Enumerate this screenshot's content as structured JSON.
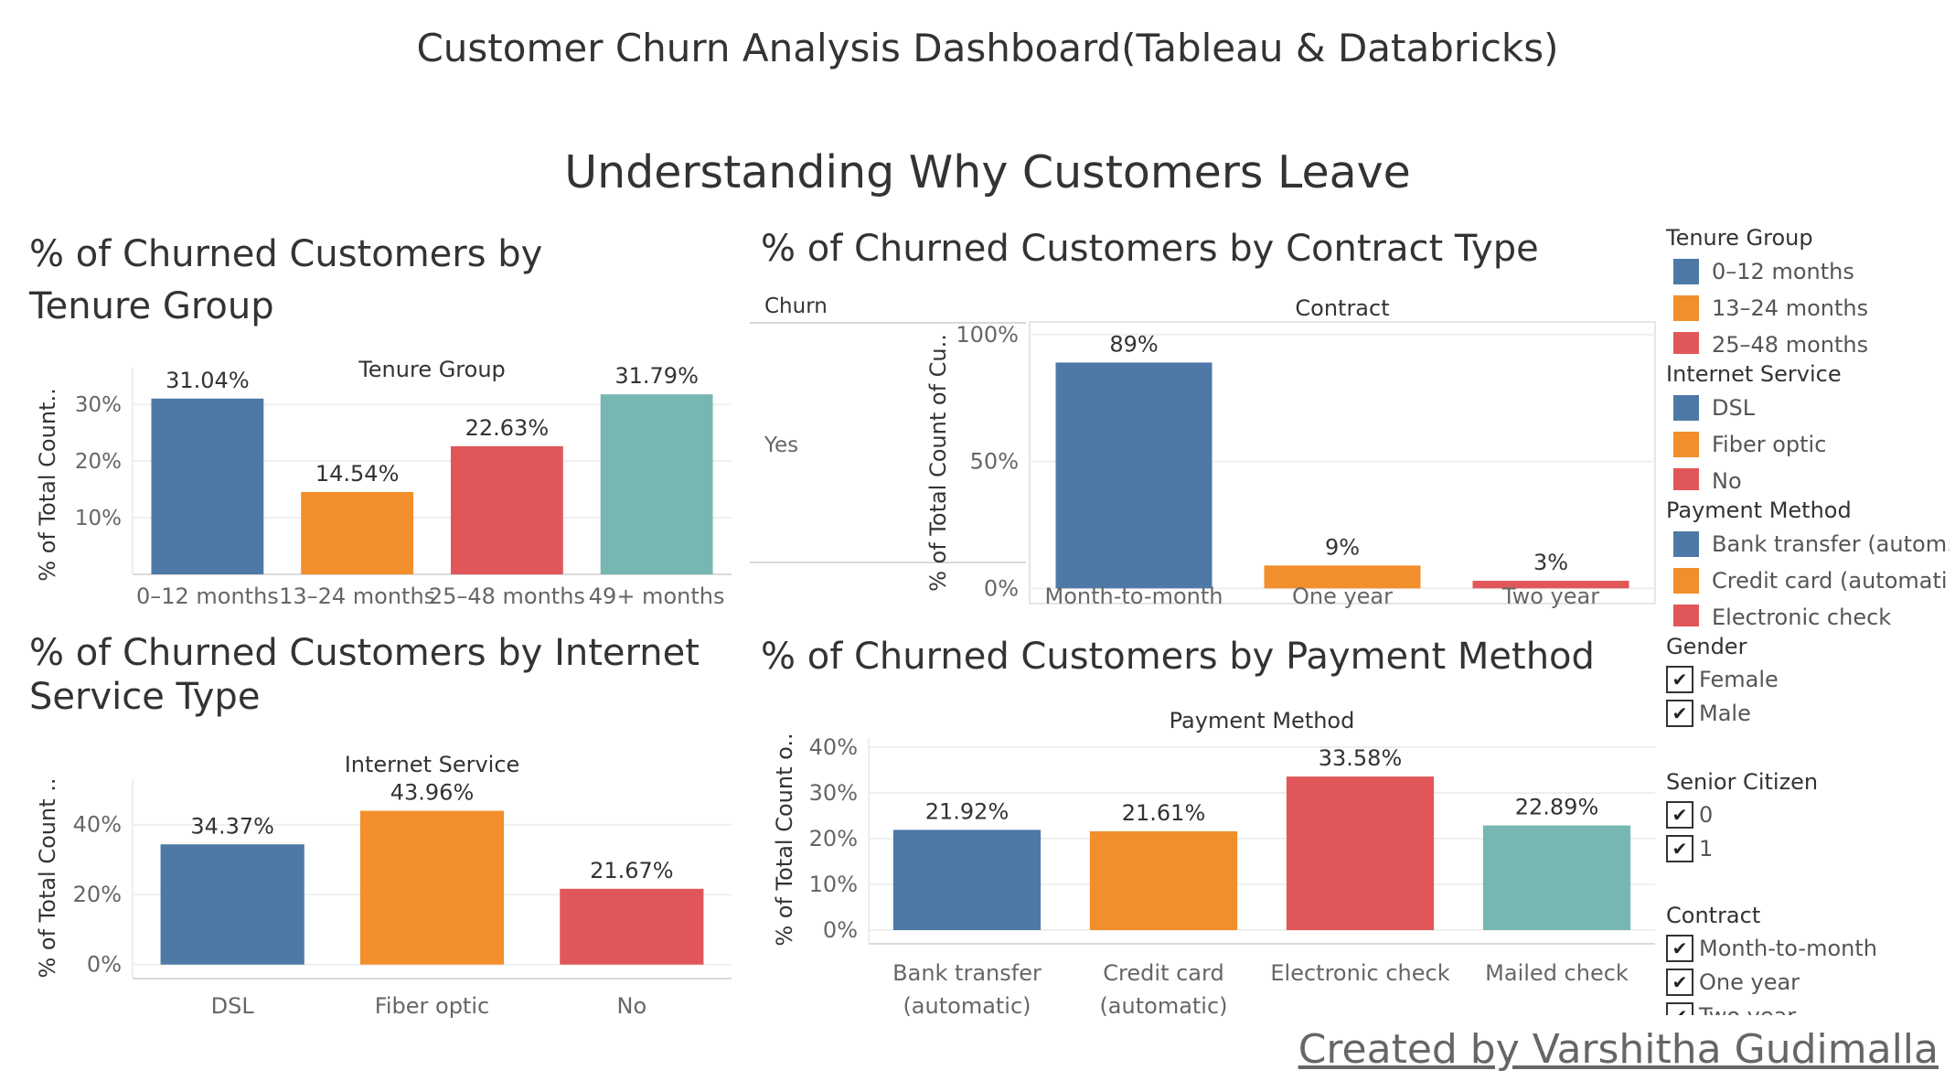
{
  "header": {
    "title": "Customer Churn Analysis Dashboard(Tableau & Databricks)",
    "subtitle": "Understanding Why Customers Leave"
  },
  "sheets": {
    "tenure": {
      "title": "% of Churned Customers by Tenure Group"
    },
    "contract": {
      "title": "% of Churned Customers by Contract Type",
      "row_header": "Churn",
      "row_value": "Yes"
    },
    "internet": {
      "title": "% of Churned Customers by Internet Service Type"
    },
    "payment": {
      "title": "% of Churned Customers by Payment Method"
    }
  },
  "chart_data": [
    {
      "id": "tenure",
      "type": "bar",
      "title": "% of Churned Customers by Tenure Group",
      "xlabel": "Tenure Group",
      "ylabel": "% of Total Count..",
      "categories": [
        "0–12 months",
        "13–24 months",
        "25–48 months",
        "49+ months"
      ],
      "values": [
        31.04,
        14.54,
        22.63,
        31.79
      ],
      "data_labels": [
        "31.04%",
        "14.54%",
        "22.63%",
        "31.79%"
      ],
      "colors": [
        "#4e79a7",
        "#f28e2b",
        "#e15759",
        "#76b7b2"
      ],
      "yticks": [
        10,
        20,
        30
      ],
      "ytick_labels": [
        "10%",
        "20%",
        "30%"
      ],
      "ylim": [
        0,
        36.5
      ],
      "grid": true
    },
    {
      "id": "contract",
      "type": "bar",
      "title": "% of Churned Customers by Contract Type",
      "xlabel": "Contract",
      "ylabel": "% of Total Count of Cu..",
      "categories": [
        "Month-to-month",
        "One year",
        "Two year"
      ],
      "values": [
        89,
        9,
        3
      ],
      "data_labels": [
        "89%",
        "9%",
        "3%"
      ],
      "colors": [
        "#4e79a7",
        "#f28e2b",
        "#e15759"
      ],
      "yticks": [
        0,
        50,
        100
      ],
      "ytick_labels": [
        "0%",
        "50%",
        "100%"
      ],
      "ylim": [
        -6,
        105
      ],
      "grid": true
    },
    {
      "id": "internet",
      "type": "bar",
      "title": "% of Churned Customers by Internet Service Type",
      "xlabel": "Internet Service",
      "ylabel": "% of Total Count ..",
      "categories": [
        "DSL",
        "Fiber optic",
        "No"
      ],
      "values": [
        34.37,
        43.96,
        21.67
      ],
      "data_labels": [
        "34.37%",
        "43.96%",
        "21.67%"
      ],
      "colors": [
        "#4e79a7",
        "#f28e2b",
        "#e15759"
      ],
      "yticks": [
        0,
        20,
        40
      ],
      "ytick_labels": [
        "0%",
        "20%",
        "40%"
      ],
      "ylim": [
        -4,
        53
      ],
      "grid": true
    },
    {
      "id": "payment",
      "type": "bar",
      "title": "% of Churned Customers by Payment Method",
      "xlabel": "Payment Method",
      "ylabel": "% of Total Count o..",
      "categories": [
        [
          "Bank transfer",
          "(automatic)"
        ],
        [
          "Credit card",
          "(automatic)"
        ],
        [
          "Electronic check"
        ],
        [
          "Mailed check"
        ]
      ],
      "values": [
        21.92,
        21.61,
        33.58,
        22.89
      ],
      "data_labels": [
        "21.92%",
        "21.61%",
        "33.58%",
        "22.89%"
      ],
      "colors": [
        "#4e79a7",
        "#f28e2b",
        "#e15759",
        "#76b7b2"
      ],
      "yticks": [
        0,
        10,
        20,
        30,
        40
      ],
      "ytick_labels": [
        "0%",
        "10%",
        "20%",
        "30%",
        "40%"
      ],
      "ylim": [
        -3,
        42
      ],
      "grid": true
    }
  ],
  "legends": {
    "tenure": {
      "title": "Tenure Group",
      "items": [
        {
          "label": "0–12 months",
          "color": "#4e79a7"
        },
        {
          "label": "13–24 months",
          "color": "#f28e2b"
        },
        {
          "label": "25–48 months",
          "color": "#e15759"
        }
      ]
    },
    "internet": {
      "title": "Internet Service",
      "items": [
        {
          "label": "DSL",
          "color": "#4e79a7"
        },
        {
          "label": "Fiber optic",
          "color": "#f28e2b"
        },
        {
          "label": "No",
          "color": "#e15759"
        }
      ]
    },
    "payment": {
      "title": "Payment Method",
      "items": [
        {
          "label": "Bank transfer (autom..",
          "color": "#4e79a7"
        },
        {
          "label": "Credit card (automati..",
          "color": "#f28e2b"
        },
        {
          "label": "Electronic check",
          "color": "#e15759"
        }
      ]
    }
  },
  "filters": {
    "gender": {
      "title": "Gender",
      "options": [
        "Female",
        "Male"
      ]
    },
    "senior": {
      "title": "Senior Citizen",
      "options": [
        "0",
        "1"
      ]
    },
    "contract": {
      "title": "Contract",
      "options": [
        "Month-to-month",
        "One year",
        "Two year"
      ]
    },
    "check_mark": "✔"
  },
  "footer": {
    "credit": "Created by Varshitha Gudimalla"
  }
}
